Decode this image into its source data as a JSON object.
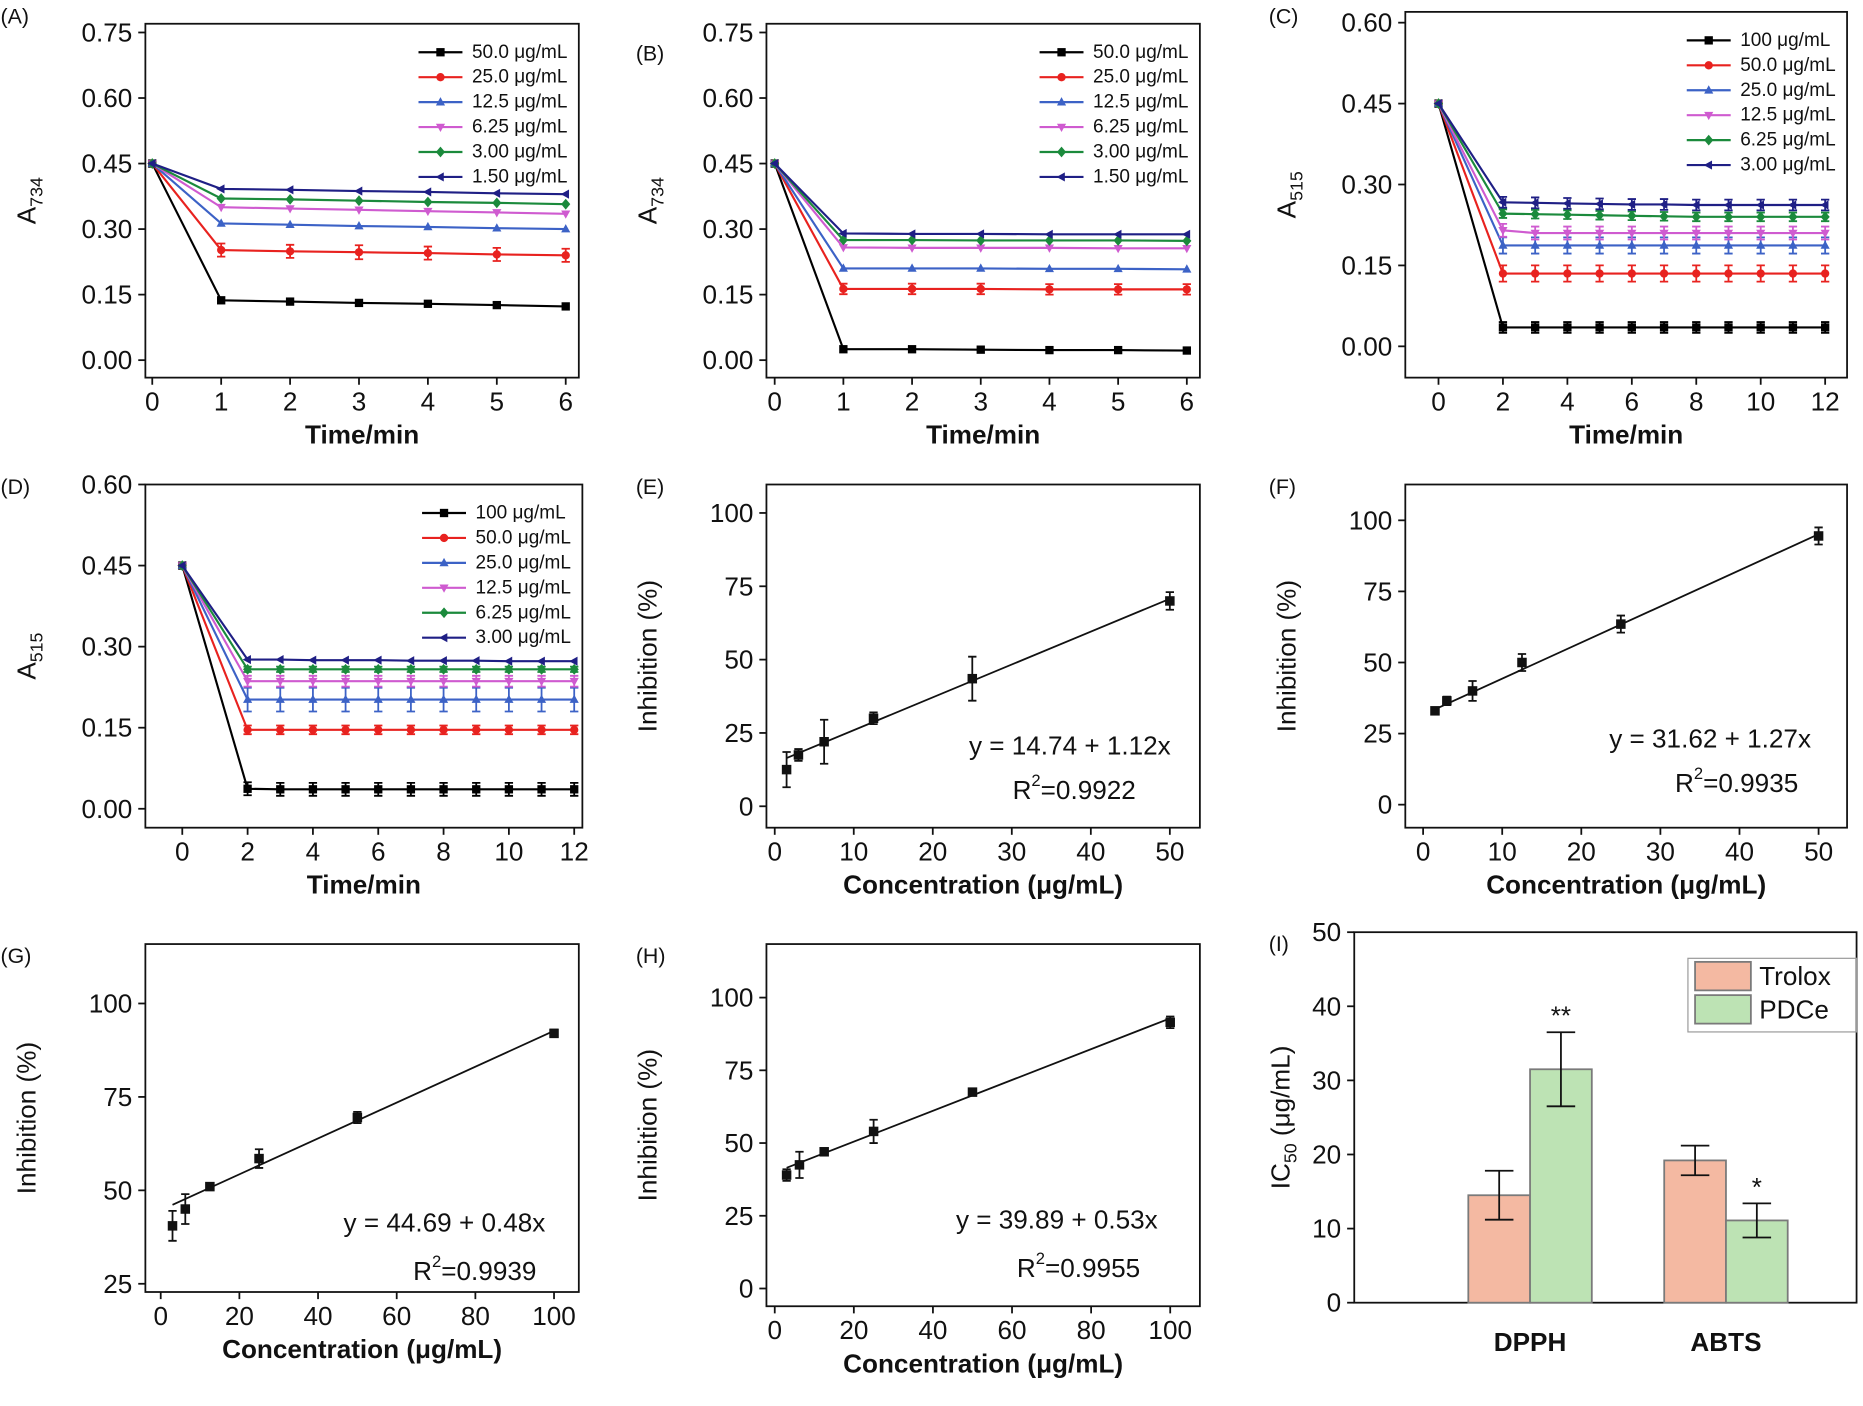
{
  "chart_data": [
    {
      "type": "line",
      "panel": "(A)",
      "xlabel": "Time/min",
      "ylabel": "A",
      "ylabel_subscript": "734",
      "x": [
        0,
        1,
        2,
        3,
        4,
        5,
        6
      ],
      "xlim": [
        -0.1,
        6.19
      ],
      "xticks": [
        0,
        1,
        2,
        3,
        4,
        5,
        6
      ],
      "ylim": [
        -0.04,
        0.77
      ],
      "yticks": [
        {
          "value": 0,
          "label": "0.00"
        },
        0.15,
        {
          "value": 0.3,
          "label": "0.30"
        },
        0.45,
        {
          "value": 0.6,
          "label": "0.60"
        },
        0.75
      ],
      "legend": "upper right",
      "series": [
        {
          "name": "50.0 μg/mL",
          "color": "#000000",
          "marker": "square",
          "values": [
            0.45,
            0.137,
            0.134,
            0.131,
            0.129,
            0.126,
            0.123
          ]
        },
        {
          "name": "25.0 μg/mL",
          "color": "#e8221f",
          "marker": "circle",
          "values": [
            0.45,
            0.252,
            0.249,
            0.247,
            0.245,
            0.242,
            0.24
          ],
          "errors": [
            0,
            0.015,
            0.015,
            0.016,
            0.015,
            0.015,
            0.015
          ]
        },
        {
          "name": "12.5 μg/mL",
          "color": "#3c62c6",
          "marker": "triangle-up",
          "values": [
            0.45,
            0.313,
            0.31,
            0.307,
            0.305,
            0.302,
            0.3
          ]
        },
        {
          "name": "6.25 μg/mL",
          "color": "#cf5bd0",
          "marker": "triangle-down",
          "values": [
            0.45,
            0.35,
            0.347,
            0.344,
            0.341,
            0.338,
            0.335
          ]
        },
        {
          "name": "3.00 μg/mL",
          "color": "#1b8a3c",
          "marker": "diamond",
          "values": [
            0.45,
            0.37,
            0.368,
            0.365,
            0.362,
            0.36,
            0.357
          ]
        },
        {
          "name": "1.50 μg/mL",
          "color": "#1f1f85",
          "marker": "triangle-left",
          "values": [
            0.45,
            0.392,
            0.39,
            0.387,
            0.385,
            0.382,
            0.38
          ]
        }
      ]
    },
    {
      "type": "line",
      "panel": "(B)",
      "xlabel": "Time/min",
      "ylabel": "A",
      "ylabel_subscript": "734",
      "x": [
        0,
        1,
        2,
        3,
        4,
        5,
        6
      ],
      "xlim": [
        -0.12,
        6.19
      ],
      "xticks": [
        0,
        1,
        2,
        3,
        4,
        5,
        6
      ],
      "ylim": [
        -0.04,
        0.77
      ],
      "yticks": [
        {
          "value": 0,
          "label": "0.00"
        },
        0.15,
        {
          "value": 0.3,
          "label": "0.30"
        },
        0.45,
        {
          "value": 0.6,
          "label": "0.60"
        },
        0.75
      ],
      "legend": "upper right",
      "series": [
        {
          "name": "50.0 μg/mL",
          "color": "#000000",
          "marker": "square",
          "values": [
            0.45,
            0.025,
            0.025,
            0.024,
            0.023,
            0.023,
            0.022
          ]
        },
        {
          "name": "25.0 μg/mL",
          "color": "#e8221f",
          "marker": "circle",
          "values": [
            0.45,
            0.163,
            0.163,
            0.163,
            0.162,
            0.162,
            0.162
          ],
          "errors": [
            0,
            0.012,
            0.012,
            0.012,
            0.012,
            0.012,
            0.012
          ]
        },
        {
          "name": "12.5 μg/mL",
          "color": "#3c62c6",
          "marker": "triangle-up",
          "values": [
            0.45,
            0.21,
            0.21,
            0.21,
            0.209,
            0.209,
            0.208
          ]
        },
        {
          "name": "6.25 μg/mL",
          "color": "#cf5bd0",
          "marker": "triangle-down",
          "values": [
            0.45,
            0.258,
            0.257,
            0.257,
            0.257,
            0.256,
            0.256
          ]
        },
        {
          "name": "3.00 μg/mL",
          "color": "#1b8a3c",
          "marker": "diamond",
          "values": [
            0.45,
            0.275,
            0.275,
            0.274,
            0.274,
            0.274,
            0.273
          ]
        },
        {
          "name": "1.50 μg/mL",
          "color": "#1f1f85",
          "marker": "triangle-left",
          "values": [
            0.45,
            0.29,
            0.289,
            0.289,
            0.288,
            0.288,
            0.288
          ]
        }
      ]
    },
    {
      "type": "line",
      "panel": "(C)",
      "xlabel": "Time/min",
      "ylabel": "A",
      "ylabel_subscript": "515",
      "x": [
        0,
        2,
        3,
        4,
        5,
        6,
        7,
        8,
        9,
        10,
        11,
        12
      ],
      "xlim": [
        -1.03,
        12.68
      ],
      "xticks": [
        0,
        2,
        4,
        6,
        8,
        10,
        12
      ],
      "ylim": [
        -0.058,
        0.62
      ],
      "yticks": [
        {
          "value": 0,
          "label": "0.00"
        },
        0.15,
        {
          "value": 0.3,
          "label": "0.30"
        },
        0.45,
        {
          "value": 0.6,
          "label": "0.60"
        }
      ],
      "legend": "upper right",
      "series": [
        {
          "name": "100 μg/mL",
          "color": "#000000",
          "marker": "square",
          "values": [
            0.45,
            0.035,
            0.035,
            0.035,
            0.035,
            0.035,
            0.035,
            0.035,
            0.035,
            0.035,
            0.035,
            0.035
          ],
          "errors": [
            0,
            0.01,
            0.01,
            0.01,
            0.01,
            0.01,
            0.01,
            0.01,
            0.01,
            0.01,
            0.01,
            0.01
          ]
        },
        {
          "name": "50.0 μg/mL",
          "color": "#e8221f",
          "marker": "circle",
          "values": [
            0.45,
            0.135,
            0.135,
            0.135,
            0.135,
            0.135,
            0.135,
            0.135,
            0.135,
            0.135,
            0.135,
            0.135
          ],
          "errors": [
            0,
            0.015,
            0.015,
            0.015,
            0.015,
            0.015,
            0.015,
            0.015,
            0.015,
            0.015,
            0.015,
            0.015
          ]
        },
        {
          "name": "25.0 μg/mL",
          "color": "#3c62c6",
          "marker": "triangle-up",
          "values": [
            0.45,
            0.187,
            0.187,
            0.187,
            0.187,
            0.187,
            0.187,
            0.187,
            0.187,
            0.187,
            0.187,
            0.187
          ],
          "errors": [
            0,
            0.015,
            0.015,
            0.015,
            0.015,
            0.015,
            0.015,
            0.015,
            0.015,
            0.015,
            0.015,
            0.015
          ]
        },
        {
          "name": "12.5 μg/mL",
          "color": "#cf5bd0",
          "marker": "triangle-down",
          "values": [
            0.45,
            0.215,
            0.21,
            0.21,
            0.21,
            0.21,
            0.21,
            0.21,
            0.21,
            0.21,
            0.21,
            0.21
          ],
          "errors": [
            0,
            0.012,
            0.012,
            0.012,
            0.012,
            0.012,
            0.012,
            0.012,
            0.012,
            0.012,
            0.012,
            0.012
          ]
        },
        {
          "name": "6.25 μg/mL",
          "color": "#1b8a3c",
          "marker": "diamond",
          "values": [
            0.45,
            0.246,
            0.245,
            0.244,
            0.243,
            0.242,
            0.241,
            0.24,
            0.24,
            0.24,
            0.24,
            0.24
          ],
          "errors": [
            0,
            0.008,
            0.008,
            0.008,
            0.008,
            0.008,
            0.008,
            0.008,
            0.008,
            0.008,
            0.008,
            0.008
          ]
        },
        {
          "name": "3.00 μg/mL",
          "color": "#1f1f85",
          "marker": "triangle-left",
          "values": [
            0.45,
            0.267,
            0.266,
            0.265,
            0.264,
            0.263,
            0.263,
            0.262,
            0.262,
            0.262,
            0.262,
            0.262
          ],
          "errors": [
            0,
            0.01,
            0.01,
            0.01,
            0.01,
            0.01,
            0.01,
            0.01,
            0.01,
            0.01,
            0.01,
            0.01
          ]
        }
      ]
    },
    {
      "type": "line",
      "panel": "(D)",
      "xlabel": "Time/min",
      "ylabel": "A",
      "ylabel_subscript": "515",
      "x": [
        0,
        2,
        3,
        4,
        5,
        6,
        7,
        8,
        9,
        10,
        11,
        12
      ],
      "xlim": [
        -1.13,
        12.25
      ],
      "xticks": [
        0,
        2,
        4,
        6,
        8,
        10,
        12
      ],
      "ylim": [
        -0.035,
        0.6
      ],
      "yticks": [
        {
          "value": 0,
          "label": "0.00"
        },
        0.15,
        {
          "value": 0.3,
          "label": "0.30"
        },
        0.45,
        {
          "value": 0.6,
          "label": "0.60"
        }
      ],
      "legend": "upper right",
      "series": [
        {
          "name": "100 μg/mL",
          "color": "#000000",
          "marker": "square",
          "values": [
            0.45,
            0.037,
            0.036,
            0.036,
            0.036,
            0.036,
            0.036,
            0.036,
            0.036,
            0.036,
            0.036,
            0.036
          ],
          "errors": [
            0,
            0.012,
            0.012,
            0.012,
            0.012,
            0.012,
            0.012,
            0.012,
            0.012,
            0.012,
            0.012,
            0.012
          ]
        },
        {
          "name": "50.0 μg/mL",
          "color": "#e8221f",
          "marker": "circle",
          "values": [
            0.45,
            0.146,
            0.146,
            0.146,
            0.146,
            0.146,
            0.146,
            0.146,
            0.146,
            0.146,
            0.146,
            0.146
          ],
          "errors": [
            0,
            0.008,
            0.008,
            0.008,
            0.008,
            0.008,
            0.008,
            0.008,
            0.008,
            0.008,
            0.008,
            0.008
          ]
        },
        {
          "name": "25.0 μg/mL",
          "color": "#3c62c6",
          "marker": "triangle-up",
          "values": [
            0.45,
            0.202,
            0.202,
            0.202,
            0.202,
            0.202,
            0.202,
            0.202,
            0.202,
            0.202,
            0.202,
            0.202
          ],
          "errors": [
            0,
            0.022,
            0.022,
            0.022,
            0.022,
            0.022,
            0.022,
            0.022,
            0.022,
            0.022,
            0.022,
            0.022
          ]
        },
        {
          "name": "12.5 μg/mL",
          "color": "#cf5bd0",
          "marker": "triangle-down",
          "values": [
            0.45,
            0.236,
            0.236,
            0.236,
            0.236,
            0.236,
            0.236,
            0.236,
            0.236,
            0.236,
            0.236,
            0.236
          ],
          "errors": [
            0,
            0.01,
            0.01,
            0.01,
            0.01,
            0.01,
            0.01,
            0.01,
            0.01,
            0.01,
            0.01,
            0.01
          ]
        },
        {
          "name": "6.25 μg/mL",
          "color": "#1b8a3c",
          "marker": "diamond",
          "values": [
            0.45,
            0.258,
            0.258,
            0.258,
            0.258,
            0.258,
            0.258,
            0.258,
            0.258,
            0.258,
            0.258,
            0.258
          ],
          "errors": [
            0,
            0.005,
            0.005,
            0.005,
            0.005,
            0.005,
            0.005,
            0.005,
            0.005,
            0.005,
            0.005,
            0.005
          ]
        },
        {
          "name": "3.00 μg/mL",
          "color": "#1f1f85",
          "marker": "triangle-left",
          "values": [
            0.45,
            0.276,
            0.276,
            0.275,
            0.275,
            0.275,
            0.274,
            0.274,
            0.274,
            0.273,
            0.273,
            0.273
          ]
        }
      ]
    },
    {
      "type": "scatter",
      "panel": "(E)",
      "xlabel": "Concentration (μg/mL)",
      "ylabel": "Inhibition (%)",
      "x": [
        1.5,
        3,
        6.25,
        12.5,
        25,
        50
      ],
      "values": [
        12.5,
        17.5,
        22,
        30,
        43.5,
        70
      ],
      "errors": [
        6,
        2,
        7.5,
        2,
        7.5,
        3
      ],
      "color": "#111111",
      "xlim": [
        -1.05,
        53.8
      ],
      "xticks": [
        0,
        10,
        20,
        30,
        40,
        50
      ],
      "ylim": [
        -7.3,
        109.7
      ],
      "yticks": [
        0,
        25,
        50,
        75,
        100
      ],
      "fit": {
        "intercept": 14.74,
        "slope": 1.12
      },
      "equation": "y = 14.74 + 1.12x",
      "r2_label": "R",
      "r2_superscript": "2",
      "r2_value": "=0.9922"
    },
    {
      "type": "scatter",
      "panel": "(F)",
      "xlabel": "Concentration (μg/mL)",
      "ylabel": "Inhibition (%)",
      "x": [
        1.5,
        3,
        6.25,
        12.5,
        25,
        50
      ],
      "values": [
        33,
        36.5,
        40,
        50,
        63.5,
        94.5
      ],
      "errors": [
        1,
        1.5,
        3.5,
        3,
        3,
        3
      ],
      "color": "#111111",
      "xlim": [
        -2.25,
        53.6
      ],
      "xticks": [
        0,
        10,
        20,
        30,
        40,
        50
      ],
      "ylim": [
        -8.1,
        112.6
      ],
      "yticks": [
        0,
        25,
        50,
        75,
        100
      ],
      "fit": {
        "intercept": 31.62,
        "slope": 1.27
      },
      "equation": "y = 31.62 + 1.27x",
      "r2_label": "R",
      "r2_superscript": "2",
      "r2_value": "=0.9935"
    },
    {
      "type": "scatter",
      "panel": "(G)",
      "xlabel": "Concentration (μg/mL)",
      "ylabel": "Inhibition (%)",
      "x": [
        3,
        6.25,
        12.5,
        25,
        50,
        100
      ],
      "values": [
        40.5,
        45,
        51,
        58.5,
        69.5,
        92
      ],
      "errors": [
        4,
        4,
        0.5,
        2.5,
        1.5,
        1
      ],
      "color": "#111111",
      "xlim": [
        -3.9,
        106.3
      ],
      "xticks": [
        0,
        20,
        40,
        60,
        80,
        100
      ],
      "ylim": [
        22.8,
        115.9
      ],
      "yticks": [
        25,
        50,
        75,
        100
      ],
      "fit": {
        "intercept": 44.69,
        "slope": 0.48
      },
      "equation": "y = 44.69 + 0.48x",
      "r2_label": "R",
      "r2_superscript": "2",
      "r2_value": "=0.9939"
    },
    {
      "type": "scatter",
      "panel": "(H)",
      "xlabel": "Concentration (μg/mL)",
      "ylabel": "Inhibition (%)",
      "x": [
        3,
        6.25,
        12.5,
        25,
        50,
        100
      ],
      "values": [
        39,
        42.5,
        47,
        54,
        67.5,
        91.5
      ],
      "errors": [
        2,
        4.5,
        0.5,
        4,
        0.5,
        2
      ],
      "color": "#111111",
      "xlim": [
        -2.1,
        107.5
      ],
      "xticks": [
        0,
        20,
        40,
        60,
        80,
        100
      ],
      "ylim": [
        -6.1,
        118.4
      ],
      "yticks": [
        0,
        25,
        50,
        75,
        100
      ],
      "fit": {
        "intercept": 39.89,
        "slope": 0.53
      },
      "equation": "y = 39.89 + 0.53x",
      "r2_label": "R",
      "r2_superscript": "2",
      "r2_value": "=0.9955"
    },
    {
      "type": "bar",
      "panel": "(I)",
      "ylabel": "IC",
      "ylabel_subscript": "50",
      "ylabel_suffix": " (μg/mL)",
      "categories": [
        "DPPH",
        "ABTS"
      ],
      "ylim": [
        0,
        50
      ],
      "yticks": [
        0,
        10,
        20,
        30,
        40,
        50
      ],
      "legend": "upper right",
      "series": [
        {
          "name": "Trolox",
          "color": "#f4b9a2",
          "values": [
            14.5,
            19.2
          ],
          "errors": [
            3.3,
            2
          ]
        },
        {
          "name": "PDCe",
          "color": "#bde3b4",
          "values": [
            31.5,
            11.1
          ],
          "errors": [
            5,
            2.3
          ],
          "significance": [
            "**",
            "*"
          ]
        }
      ]
    }
  ]
}
